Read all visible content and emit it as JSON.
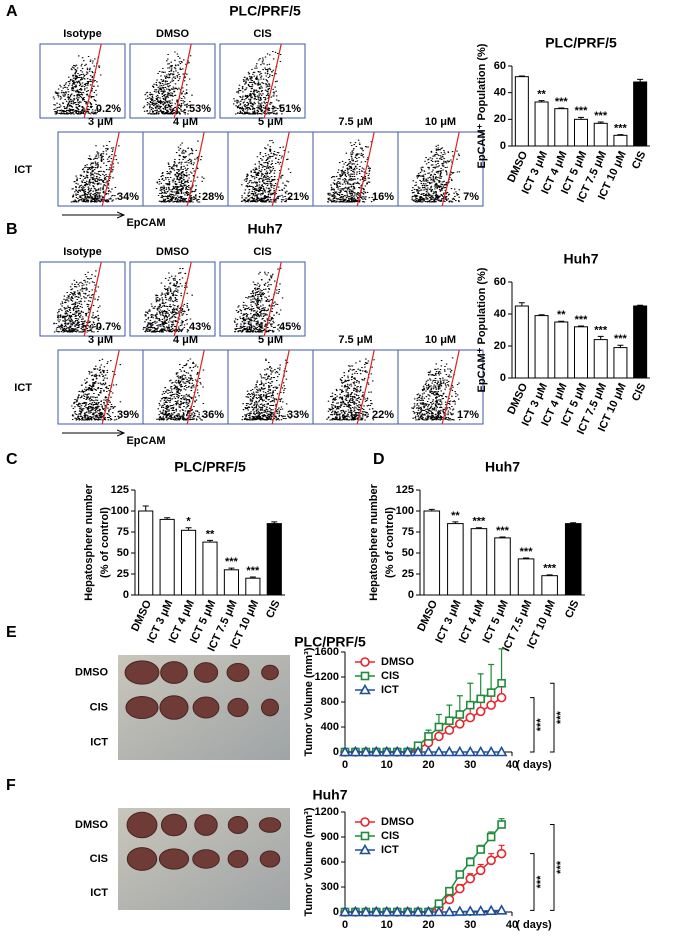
{
  "figure": {
    "flow": [
      {
        "label": "A",
        "title": "PLC/PRF/5",
        "row_label": "ICT",
        "xlabel": "EpCAM",
        "rows": [
          [
            {
              "name": "Isotype",
              "percent": "0.2%"
            },
            {
              "name": "DMSO",
              "percent": "53%"
            },
            {
              "name": "CIS",
              "percent": "51%"
            }
          ],
          [
            {
              "name": "3 μM",
              "percent": "34%"
            },
            {
              "name": "4 μM",
              "percent": "28%"
            },
            {
              "name": "5 μM",
              "percent": "21%"
            },
            {
              "name": "7.5 μM",
              "percent": "16%"
            },
            {
              "name": "10 μM",
              "percent": "7%"
            }
          ]
        ]
      },
      {
        "label": "B",
        "title": "Huh7",
        "row_label": "ICT",
        "xlabel": "EpCAM",
        "rows": [
          [
            {
              "name": "Isotype",
              "percent": "0.7%"
            },
            {
              "name": "DMSO",
              "percent": "43%"
            },
            {
              "name": "CIS",
              "percent": "45%"
            }
          ],
          [
            {
              "name": "3 μM",
              "percent": "39%"
            },
            {
              "name": "4 μM",
              "percent": "36%"
            },
            {
              "name": "5 μM",
              "percent": "33%"
            },
            {
              "name": "7.5 μM",
              "percent": "22%"
            },
            {
              "name": "10 μM",
              "percent": "17%"
            }
          ]
        ]
      }
    ],
    "tumors": [
      {
        "label": "E",
        "title": "PLC/PRF/5",
        "rows": [
          "DMSO",
          "CIS",
          "ICT"
        ]
      },
      {
        "label": "F",
        "title": "Huh7",
        "rows": [
          "DMSO",
          "CIS",
          "ICT"
        ]
      }
    ]
  },
  "chart_data": [
    {
      "type": "bar",
      "title": "PLC/PRF/5",
      "ylabel": [
        "EpCAM⁺ Population (%)"
      ],
      "categories": [
        "DMSO",
        "ICT 3 μM",
        "ICT 4 μM",
        "ICT 5 μM",
        "ICT 7.5 μM",
        "ICT 10 μM",
        "CIS"
      ],
      "values": [
        52,
        33,
        28,
        20,
        17,
        8,
        48
      ],
      "errors": [
        0.5,
        1,
        0.5,
        1.5,
        1,
        0.5,
        2
      ],
      "annotations": [
        null,
        "**",
        "***",
        "***",
        "***",
        "***",
        null
      ],
      "colors": [
        "#ffffff",
        "#ffffff",
        "#ffffff",
        "#ffffff",
        "#ffffff",
        "#ffffff",
        "#000000"
      ],
      "ylim": [
        0,
        60
      ],
      "yticks": [
        0,
        20,
        40,
        60
      ]
    },
    {
      "type": "bar",
      "title": "Huh7",
      "ylabel": [
        "EpCAM⁺ Population (%)"
      ],
      "categories": [
        "DMSO",
        "ICT 3 μM",
        "ICT 4 μM",
        "ICT 5 μM",
        "ICT 7.5 μM",
        "ICT 10 μM",
        "CIS"
      ],
      "values": [
        45,
        39,
        35,
        32,
        24,
        19,
        45
      ],
      "errors": [
        2,
        0.5,
        0.5,
        0.5,
        2,
        1.5,
        0.5
      ],
      "annotations": [
        null,
        null,
        "**",
        "***",
        "***",
        "***",
        null
      ],
      "colors": [
        "#ffffff",
        "#ffffff",
        "#ffffff",
        "#ffffff",
        "#ffffff",
        "#ffffff",
        "#000000"
      ],
      "ylim": [
        0,
        60
      ],
      "yticks": [
        0,
        20,
        40,
        60
      ]
    },
    {
      "type": "bar",
      "panel": "C",
      "title": "PLC/PRF/5",
      "ylabel": [
        "Hepatosphere number",
        "(% of control)"
      ],
      "categories": [
        "DMSO",
        "ICT 3 μM",
        "ICT 4 μM",
        "ICT 5 μM",
        "ICT 7.5 μM",
        "ICT 10 μM",
        "CIS"
      ],
      "values": [
        100,
        90,
        77,
        63,
        30,
        20,
        85
      ],
      "errors": [
        6,
        2,
        3,
        2,
        2,
        1.5,
        2
      ],
      "annotations": [
        null,
        null,
        "*",
        "**",
        "***",
        "***",
        null
      ],
      "colors": [
        "#ffffff",
        "#ffffff",
        "#ffffff",
        "#ffffff",
        "#ffffff",
        "#ffffff",
        "#000000"
      ],
      "ylim": [
        0,
        125
      ],
      "yticks": [
        0,
        25,
        50,
        75,
        100,
        125
      ]
    },
    {
      "type": "bar",
      "panel": "D",
      "title": "Huh7",
      "ylabel": [
        "Hepatosphere number",
        "(% of control)"
      ],
      "categories": [
        "DMSO",
        "ICT 3 μM",
        "ICT 4 μM",
        "ICT 5 μM",
        "ICT 7.5 μM",
        "ICT 10 μM",
        "CIS"
      ],
      "values": [
        100,
        85,
        79,
        68,
        43,
        23,
        85
      ],
      "errors": [
        2,
        2,
        1,
        1,
        1,
        1,
        1
      ],
      "annotations": [
        null,
        "**",
        "***",
        "***",
        "***",
        "***",
        null
      ],
      "colors": [
        "#ffffff",
        "#ffffff",
        "#ffffff",
        "#ffffff",
        "#ffffff",
        "#ffffff",
        "#000000"
      ],
      "ylim": [
        0,
        125
      ],
      "yticks": [
        0,
        25,
        50,
        75,
        100,
        125
      ]
    },
    {
      "type": "line",
      "ylabel": "Tumor Volume (mm³)",
      "xlabel": "( days)",
      "x": [
        0,
        2.5,
        5,
        7.5,
        10,
        12.5,
        15,
        17.5,
        20,
        22.5,
        25,
        27.5,
        30,
        32.5,
        35,
        37.5
      ],
      "series": [
        {
          "name": "DMSO",
          "color": "#e8232a",
          "marker": "circle",
          "values": [
            0,
            0,
            0,
            0,
            0,
            0,
            0,
            50,
            150,
            250,
            350,
            450,
            550,
            650,
            750,
            870
          ],
          "errors": [
            0,
            0,
            0,
            0,
            0,
            0,
            0,
            30,
            60,
            100,
            150,
            180,
            200,
            200,
            220,
            250
          ]
        },
        {
          "name": "CIS",
          "color": "#1e8c3a",
          "marker": "square",
          "values": [
            0,
            0,
            0,
            0,
            0,
            0,
            0,
            100,
            250,
            400,
            500,
            600,
            750,
            850,
            950,
            1100
          ],
          "errors": [
            0,
            0,
            0,
            0,
            0,
            0,
            0,
            50,
            100,
            200,
            250,
            300,
            350,
            400,
            450,
            550
          ]
        },
        {
          "name": "ICT",
          "color": "#1f4e9c",
          "marker": "triangle",
          "values": [
            0,
            0,
            0,
            0,
            0,
            0,
            0,
            0,
            0,
            0,
            0,
            0,
            0,
            0,
            0,
            0
          ]
        }
      ],
      "significance": [
        "***",
        "***"
      ],
      "xlim": [
        0,
        40
      ],
      "xticks": [
        0,
        10,
        20,
        30,
        40
      ],
      "ylim": [
        0,
        1600
      ],
      "yticks": [
        0,
        400,
        800,
        1200,
        1600
      ]
    },
    {
      "type": "line",
      "ylabel": "Tumor Volume (mm³)",
      "xlabel": "( days)",
      "x": [
        0,
        2.5,
        5,
        7.5,
        10,
        12.5,
        15,
        17.5,
        20,
        22.5,
        25,
        27.5,
        30,
        32.5,
        35,
        37.5
      ],
      "series": [
        {
          "name": "DMSO",
          "color": "#e8232a",
          "marker": "circle",
          "values": [
            0,
            0,
            0,
            0,
            0,
            0,
            0,
            0,
            0,
            50,
            150,
            280,
            400,
            500,
            620,
            700
          ],
          "errors": [
            0,
            0,
            0,
            0,
            0,
            0,
            0,
            0,
            0,
            20,
            40,
            50,
            60,
            70,
            80,
            100
          ]
        },
        {
          "name": "CIS",
          "color": "#1e8c3a",
          "marker": "square",
          "values": [
            0,
            0,
            0,
            0,
            0,
            0,
            0,
            0,
            0,
            100,
            250,
            450,
            600,
            750,
            900,
            1050
          ],
          "errors": [
            0,
            0,
            0,
            0,
            0,
            0,
            0,
            0,
            0,
            20,
            30,
            40,
            50,
            50,
            60,
            70
          ]
        },
        {
          "name": "ICT",
          "color": "#1f4e9c",
          "marker": "triangle",
          "values": [
            0,
            0,
            0,
            0,
            0,
            0,
            0,
            0,
            0,
            0,
            0,
            5,
            8,
            10,
            15,
            20
          ]
        }
      ],
      "significance": [
        "***",
        "***"
      ],
      "xlim": [
        0,
        40
      ],
      "xticks": [
        0,
        10,
        20,
        30,
        40
      ],
      "ylim": [
        0,
        1200
      ],
      "yticks": [
        0,
        300,
        600,
        900,
        1200
      ]
    }
  ]
}
